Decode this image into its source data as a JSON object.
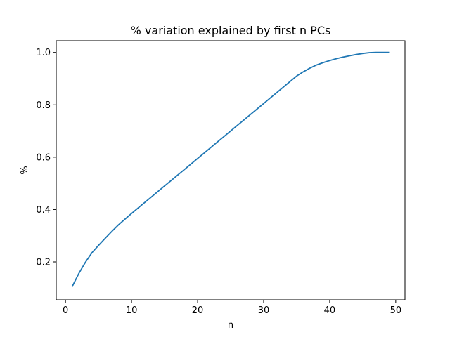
{
  "chart_data": {
    "type": "line",
    "title": "% variation explained by first n PCs",
    "xlabel": "n",
    "ylabel": "%",
    "xlim": [
      -1.4,
      51.4
    ],
    "ylim": [
      0.0552,
      1.0448
    ],
    "xticks": [
      0,
      10,
      20,
      30,
      40,
      50
    ],
    "yticks": [
      0.2,
      0.4,
      0.6,
      0.8,
      1.0
    ],
    "xtick_labels": [
      "0",
      "10",
      "20",
      "30",
      "40",
      "50"
    ],
    "ytick_labels": [
      "0.2",
      "0.4",
      "0.6",
      "0.8",
      "1.0"
    ],
    "grid": false,
    "line_color": "#1f77b4",
    "series": [
      {
        "x": [
          1,
          2,
          3,
          4,
          5,
          6,
          7,
          8,
          9,
          10,
          11,
          12,
          13,
          14,
          15,
          16,
          17,
          18,
          19,
          20,
          21,
          22,
          23,
          24,
          25,
          26,
          27,
          28,
          29,
          30,
          31,
          32,
          33,
          34,
          35,
          36,
          37,
          38,
          39,
          40,
          41,
          42,
          43,
          44,
          45,
          46,
          47,
          48,
          49
        ],
        "values": [
          0.105,
          0.155,
          0.198,
          0.235,
          0.263,
          0.29,
          0.316,
          0.341,
          0.363,
          0.385,
          0.406,
          0.427,
          0.448,
          0.469,
          0.49,
          0.511,
          0.532,
          0.553,
          0.574,
          0.595,
          0.616,
          0.637,
          0.658,
          0.679,
          0.7,
          0.721,
          0.742,
          0.763,
          0.784,
          0.805,
          0.826,
          0.847,
          0.868,
          0.889,
          0.91,
          0.926,
          0.94,
          0.952,
          0.961,
          0.969,
          0.976,
          0.982,
          0.987,
          0.992,
          0.996,
          0.999,
          1.0,
          1.0,
          1.0
        ]
      }
    ]
  }
}
